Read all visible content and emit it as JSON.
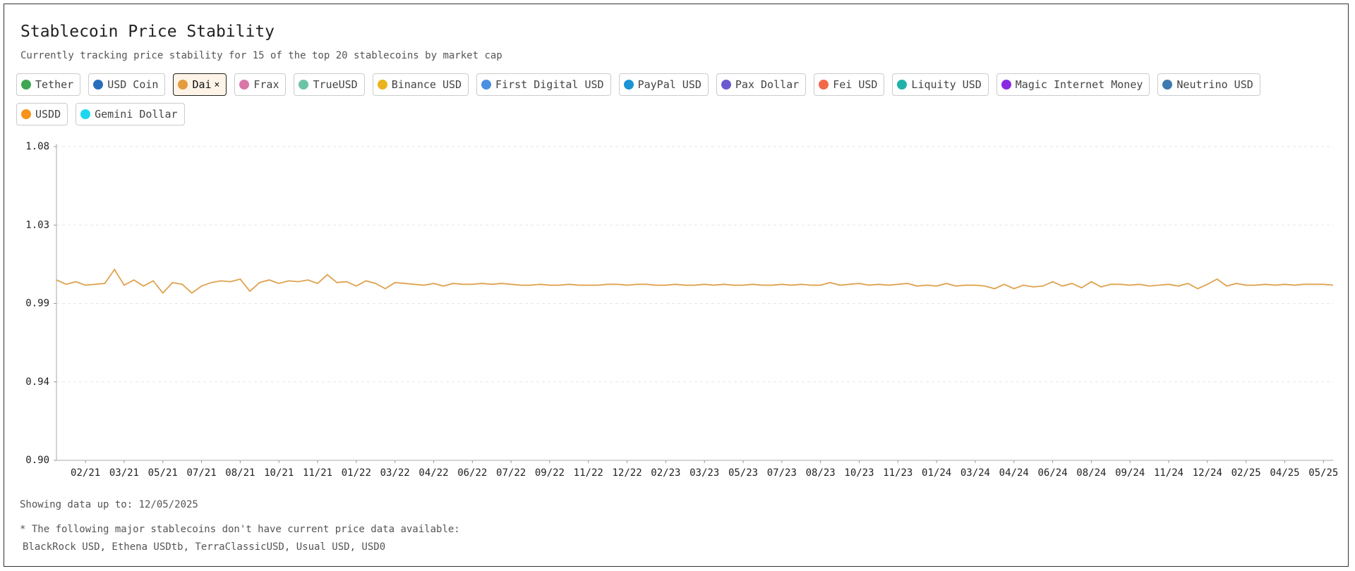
{
  "header": {
    "title": "Stablecoin Price Stability",
    "subtitle": "Currently tracking price stability for 15 of the top 20 stablecoins by market cap"
  },
  "filters": [
    {
      "label": "Tether",
      "color": "#3fa654"
    },
    {
      "label": "USD Coin",
      "color": "#2a6ebb"
    },
    {
      "label": "Dai",
      "color": "#e39b3f",
      "remove": "×"
    },
    {
      "label": "Frax",
      "color": "#d977a8"
    },
    {
      "label": "TrueUSD",
      "color": "#6cc4a8"
    },
    {
      "label": "Binance USD",
      "color": "#eab41c"
    },
    {
      "label": "First Digital USD",
      "color": "#4a8fe0"
    },
    {
      "label": "PayPal USD",
      "color": "#1a94d4"
    },
    {
      "label": "Pax Dollar",
      "color": "#6a5acd"
    },
    {
      "label": "Fei USD",
      "color": "#f06a4a"
    },
    {
      "label": "Liquity USD",
      "color": "#20b2aa"
    },
    {
      "label": "Magic Internet Money",
      "color": "#8a2be2"
    },
    {
      "label": "Neutrino USD",
      "color": "#3d7ab0"
    },
    {
      "label": "USDD",
      "color": "#f7931a"
    },
    {
      "label": "Gemini Dollar",
      "color": "#1ed6f0"
    }
  ],
  "chart_data": {
    "type": "line",
    "categories": [
      null,
      null,
      null,
      "02/21",
      null,
      null,
      null,
      "03/21",
      null,
      null,
      null,
      "05/21",
      null,
      null,
      null,
      "07/21",
      null,
      null,
      null,
      "08/21",
      null,
      null,
      null,
      "10/21",
      null,
      null,
      null,
      "11/21",
      null,
      null,
      null,
      "01/22",
      null,
      null,
      null,
      "03/22",
      null,
      null,
      null,
      "04/22",
      null,
      null,
      null,
      "06/22",
      null,
      null,
      null,
      "07/22",
      null,
      null,
      null,
      "09/22",
      null,
      null,
      null,
      "11/22",
      null,
      null,
      null,
      "12/22",
      null,
      null,
      null,
      "02/23",
      null,
      null,
      null,
      "03/23",
      null,
      null,
      null,
      "05/23",
      null,
      null,
      null,
      "07/23",
      null,
      null,
      null,
      "08/23",
      null,
      null,
      null,
      "10/23",
      null,
      null,
      null,
      "11/23",
      null,
      null,
      null,
      "01/24",
      null,
      null,
      null,
      "03/24",
      null,
      null,
      null,
      "04/24",
      null,
      null,
      null,
      "06/24",
      null,
      null,
      null,
      "08/24",
      null,
      null,
      null,
      "09/24",
      null,
      null,
      null,
      "11/24",
      null,
      null,
      null,
      "12/24",
      null,
      null,
      null,
      "02/25",
      null,
      null,
      null,
      "04/25",
      null,
      null,
      null,
      "05/25",
      null
    ],
    "series": [
      {
        "color": "#dfa24e",
        "values": [
          1.0035,
          1.001,
          1.0025,
          1.0005,
          1.001,
          1.0015,
          1.0095,
          1.0005,
          1.0035,
          1.0,
          1.003,
          0.996,
          1.002,
          1.001,
          0.996,
          1.0,
          1.002,
          1.003,
          1.0025,
          1.004,
          0.997,
          1.002,
          1.0035,
          1.0015,
          1.003,
          1.0025,
          1.0035,
          1.0015,
          1.0065,
          1.002,
          1.0025,
          1.0,
          1.003,
          1.0015,
          0.9985,
          1.002,
          1.0015,
          1.001,
          1.0005,
          1.0015,
          1.0,
          1.0015,
          1.001,
          1.001,
          1.0015,
          1.001,
          1.0015,
          1.001,
          1.0005,
          1.0005,
          1.001,
          1.0005,
          1.0005,
          1.001,
          1.0005,
          1.0005,
          1.0005,
          1.001,
          1.001,
          1.0005,
          1.001,
          1.001,
          1.0005,
          1.0005,
          1.001,
          1.0005,
          1.0005,
          1.001,
          1.0005,
          1.001,
          1.0005,
          1.0005,
          1.001,
          1.0005,
          1.0005,
          1.001,
          1.0005,
          1.001,
          1.0005,
          1.0005,
          1.002,
          1.0005,
          1.001,
          1.0015,
          1.0005,
          1.001,
          1.0005,
          1.001,
          1.0015,
          1.0,
          1.0005,
          1.0,
          1.0015,
          1.0,
          1.0005,
          1.0005,
          1.0,
          0.9985,
          1.001,
          0.9985,
          1.0005,
          0.9995,
          1.0,
          1.0025,
          1.0,
          1.0015,
          0.999,
          1.0025,
          0.9995,
          1.001,
          1.001,
          1.0005,
          1.001,
          1.0,
          1.0005,
          1.001,
          1.0,
          1.0015,
          0.9985,
          1.001,
          1.004,
          1.0,
          1.0015,
          1.0005,
          1.0005,
          1.001,
          1.0005,
          1.001,
          1.0005,
          1.001,
          1.001,
          1.001,
          1.0005
        ]
      }
    ],
    "ylim": [
      0.9,
      1.08
    ],
    "yticks": [
      {
        "value": 0.9,
        "label": "0.90"
      },
      {
        "value": 0.945,
        "label": "0.94"
      },
      0.99,
      {
        "value": 1.035,
        "label": "1.03"
      },
      1.08
    ],
    "grid": true
  },
  "footer": {
    "updated": "Showing data up to: 12/05/2025",
    "note": "* The following major stablecoins don't have current price data available:",
    "missing": "BlackRock USD, Ethena USDtb, TerraClassicUSD, Usual USD, USD0"
  }
}
